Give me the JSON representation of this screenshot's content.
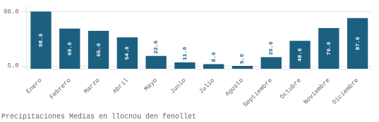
{
  "chart_data": {
    "type": "bar",
    "title": "Precipitaciones Medias en llocnou den fenollet",
    "categories": [
      "Enero",
      "Febrero",
      "Marzo",
      "Abril",
      "Mayo",
      "Junio",
      "Julio",
      "Agosto",
      "Septiembre",
      "Octubre",
      "Noviembre",
      "Diciembre"
    ],
    "values": [
      98.0,
      69.0,
      65.0,
      54.0,
      22.0,
      11.0,
      8.0,
      5.0,
      20.0,
      48.0,
      70.0,
      87.0
    ],
    "value_labels": [
      "98.0",
      "69.0",
      "65.0",
      "54.0",
      "22.0",
      "11.0",
      "8.0",
      "5.0",
      "20.0",
      "48.0",
      "70.0",
      "87.0"
    ],
    "color": "#1b6080",
    "ylim": [
      0,
      107.8
    ],
    "yticks": [
      {
        "value": 5,
        "label": "5.0"
      },
      {
        "value": 98,
        "label": "98.0"
      }
    ],
    "grid": true,
    "data_labels": true
  }
}
